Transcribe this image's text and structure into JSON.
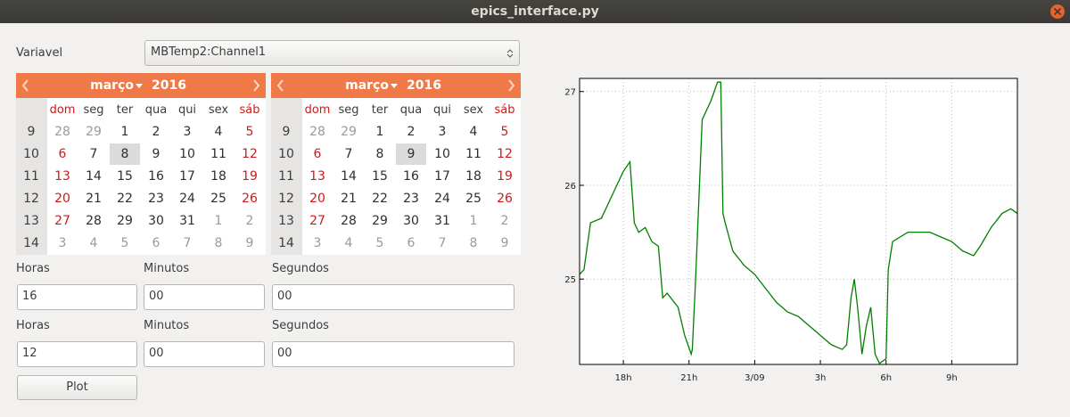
{
  "window_title": "epics_interface.py",
  "variable_label": "Variavel",
  "variable_value": "MBTemp2:Channel1",
  "calendars": [
    {
      "month": "março",
      "year": "2016",
      "selected_day": 8,
      "weekdays": [
        "dom",
        "seg",
        "ter",
        "qua",
        "qui",
        "sex",
        "sáb"
      ],
      "weeks": [
        {
          "number": 9,
          "days": [
            28,
            29,
            1,
            2,
            3,
            4,
            5
          ]
        },
        {
          "number": 10,
          "days": [
            6,
            7,
            8,
            9,
            10,
            11,
            12
          ]
        },
        {
          "number": 11,
          "days": [
            13,
            14,
            15,
            16,
            17,
            18,
            19
          ]
        },
        {
          "number": 12,
          "days": [
            20,
            21,
            22,
            23,
            24,
            25,
            26
          ]
        },
        {
          "number": 13,
          "days": [
            27,
            28,
            29,
            30,
            31,
            1,
            2
          ]
        },
        {
          "number": 14,
          "days": [
            3,
            4,
            5,
            6,
            7,
            8,
            9
          ]
        }
      ]
    },
    {
      "month": "março",
      "year": "2016",
      "selected_day": 9,
      "weekdays": [
        "dom",
        "seg",
        "ter",
        "qua",
        "qui",
        "sex",
        "sáb"
      ],
      "weeks": [
        {
          "number": 9,
          "days": [
            28,
            29,
            1,
            2,
            3,
            4,
            5
          ]
        },
        {
          "number": 10,
          "days": [
            6,
            7,
            8,
            9,
            10,
            11,
            12
          ]
        },
        {
          "number": 11,
          "days": [
            13,
            14,
            15,
            16,
            17,
            18,
            19
          ]
        },
        {
          "number": 12,
          "days": [
            20,
            21,
            22,
            23,
            24,
            25,
            26
          ]
        },
        {
          "number": 13,
          "days": [
            27,
            28,
            29,
            30,
            31,
            1,
            2
          ]
        },
        {
          "number": 14,
          "days": [
            3,
            4,
            5,
            6,
            7,
            8,
            9
          ]
        }
      ]
    }
  ],
  "times": [
    {
      "hours_label": "Horas",
      "hours_value": "16",
      "minutes_label": "Minutos",
      "minutes_value": "00",
      "seconds_label": "Segundos",
      "seconds_value": "00"
    },
    {
      "hours_label": "Horas",
      "hours_value": "12",
      "minutes_label": "Minutos",
      "minutes_value": "00",
      "seconds_label": "Segundos",
      "seconds_value": "00"
    }
  ],
  "plot_button": "Plot",
  "chart_data": {
    "type": "line",
    "x": [
      16.0,
      16.2,
      16.5,
      17.0,
      17.5,
      18.0,
      18.3,
      18.5,
      18.7,
      19.0,
      19.3,
      19.6,
      19.8,
      20.0,
      20.5,
      20.8,
      21.1,
      21.15,
      21.3,
      21.6,
      22.0,
      22.3,
      22.45,
      22.55,
      22.65,
      23.0,
      23.5,
      24.0,
      24.5,
      25.0,
      25.5,
      26.0,
      26.5,
      27.0,
      27.5,
      28.0,
      28.2,
      28.4,
      28.55,
      28.7,
      28.9,
      29.1,
      29.3,
      29.5,
      29.7,
      30.0,
      30.1,
      30.3,
      31.0,
      32.0,
      32.5,
      33.0,
      33.5,
      34.0,
      34.3,
      34.8,
      35.3,
      35.7,
      36.0
    ],
    "series": [
      {
        "color": "#007f00",
        "values": [
          25.05,
          25.1,
          25.6,
          25.65,
          25.9,
          26.15,
          26.25,
          25.6,
          25.5,
          25.55,
          25.4,
          25.35,
          24.8,
          24.85,
          24.7,
          24.4,
          24.2,
          24.25,
          25.0,
          26.7,
          26.9,
          27.1,
          27.1,
          25.7,
          25.6,
          25.3,
          25.15,
          25.05,
          24.9,
          24.75,
          24.65,
          24.6,
          24.5,
          24.4,
          24.3,
          24.25,
          24.3,
          24.8,
          25.0,
          24.7,
          24.2,
          24.5,
          24.7,
          24.2,
          24.1,
          24.15,
          25.1,
          25.4,
          25.5,
          25.5,
          25.45,
          25.4,
          25.3,
          25.25,
          25.35,
          25.55,
          25.7,
          25.75,
          25.7
        ]
      }
    ],
    "xlim": [
      16,
      36
    ],
    "xticks": [
      {
        "value": 18,
        "label": "18h"
      },
      {
        "value": 21,
        "label": "21h"
      },
      {
        "value": 24,
        "label": "3/09"
      },
      {
        "value": 27,
        "label": "3h"
      },
      {
        "value": 30,
        "label": "6h"
      },
      {
        "value": 33,
        "label": "9h"
      }
    ],
    "ylim": [
      24.09,
      27.14
    ],
    "yticks": [
      25,
      26,
      27
    ],
    "grid": true
  }
}
